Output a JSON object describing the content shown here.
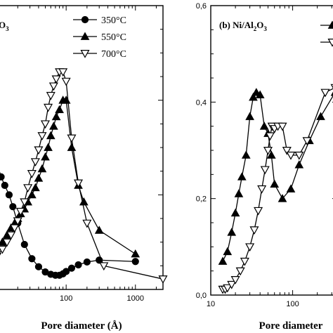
{
  "chart_data": [
    {
      "type": "line",
      "panel_label_parts": [
        "O",
        "3"
      ],
      "xlabel": "Pore diameter (Å)",
      "xscale": "log",
      "xlim": [
        9.2,
        2500
      ],
      "ylim": [
        0,
        0.6
      ],
      "x_tick_labels": [
        {
          "value": 100,
          "label": "100"
        },
        {
          "value": 1000,
          "label": "1000"
        }
      ],
      "legend": {
        "position": "top-right"
      },
      "series": [
        {
          "name": "350°C",
          "marker": "circle-filled",
          "x": [
            10,
            11.5,
            13,
            15,
            17,
            20,
            25,
            32,
            40,
            50,
            60,
            70,
            80,
            90,
            100,
            120,
            150,
            200,
            300,
            1000
          ],
          "y": [
            0.245,
            0.238,
            0.22,
            0.2,
            0.175,
            0.14,
            0.095,
            0.065,
            0.048,
            0.037,
            0.032,
            0.03,
            0.03,
            0.033,
            0.038,
            0.045,
            0.052,
            0.058,
            0.062,
            0.059
          ]
        },
        {
          "name": "550°C",
          "marker": "triangle-up-filled",
          "x": [
            10,
            12,
            14,
            16,
            18,
            20,
            22,
            25,
            28,
            32,
            36,
            40,
            45,
            50,
            55,
            60,
            66,
            72,
            80,
            90,
            100,
            120,
            150,
            180,
            300,
            1000
          ],
          "y": [
            0.09,
            0.1,
            0.115,
            0.13,
            0.14,
            0.15,
            0.16,
            0.17,
            0.185,
            0.2,
            0.215,
            0.235,
            0.255,
            0.28,
            0.3,
            0.325,
            0.345,
            0.365,
            0.38,
            0.4,
            0.4,
            0.3,
            0.22,
            0.185,
            0.125,
            0.075
          ]
        },
        {
          "name": "700°C",
          "marker": "triangle-down-open",
          "x": [
            10,
            12,
            14,
            16,
            18,
            20,
            22,
            25,
            28,
            32,
            36,
            40,
            45,
            50,
            55,
            60,
            66,
            72,
            80,
            90,
            100,
            120,
            150,
            200,
            350,
            2500
          ],
          "y": [
            0.07,
            0.085,
            0.1,
            0.115,
            0.13,
            0.145,
            0.165,
            0.185,
            0.215,
            0.245,
            0.27,
            0.295,
            0.325,
            0.35,
            0.385,
            0.41,
            0.43,
            0.445,
            0.46,
            0.46,
            0.44,
            0.32,
            0.225,
            0.14,
            0.05,
            0.022
          ]
        }
      ]
    },
    {
      "type": "line",
      "panel_label_parts": [
        "(b) Ni/Al",
        "2",
        "O",
        "3"
      ],
      "xlabel": "Pore diameter",
      "xscale": "log",
      "xlim": [
        10,
        350
      ],
      "ylim": [
        0,
        0.6
      ],
      "y_ticks": [
        {
          "value": 0.0,
          "label": "0,0"
        },
        {
          "value": 0.2,
          "label": "0,2"
        },
        {
          "value": 0.4,
          "label": "0,4"
        },
        {
          "value": 0.6,
          "label": "0,6"
        }
      ],
      "x_tick_labels": [
        {
          "value": 10,
          "label": "10"
        },
        {
          "value": 100,
          "label": "100"
        }
      ],
      "legend": {
        "position": "top-right"
      },
      "series": [
        {
          "marker": "triangle-up-filled",
          "x": [
            14,
            16,
            18,
            20,
            22,
            24,
            27,
            30,
            33,
            36,
            40,
            45,
            50,
            55,
            60,
            75,
            95,
            120,
            160,
            220,
            330
          ],
          "y": [
            0.07,
            0.09,
            0.13,
            0.17,
            0.21,
            0.245,
            0.29,
            0.37,
            0.41,
            0.42,
            0.415,
            0.35,
            0.335,
            0.29,
            0.23,
            0.2,
            0.22,
            0.27,
            0.32,
            0.37,
            0.42
          ]
        },
        {
          "marker": "triangle-down-open",
          "x": [
            14,
            15,
            16,
            18,
            20,
            23,
            26,
            30,
            34,
            38,
            42,
            46,
            50,
            53,
            56,
            60,
            66,
            75,
            85,
            95,
            120,
            150,
            250,
            330
          ],
          "y": [
            0.012,
            0.012,
            0.015,
            0.022,
            0.032,
            0.05,
            0.07,
            0.1,
            0.135,
            0.175,
            0.22,
            0.26,
            0.3,
            0.33,
            0.35,
            0.345,
            0.35,
            0.35,
            0.3,
            0.29,
            0.29,
            0.32,
            0.42,
            0.43
          ]
        }
      ]
    }
  ]
}
